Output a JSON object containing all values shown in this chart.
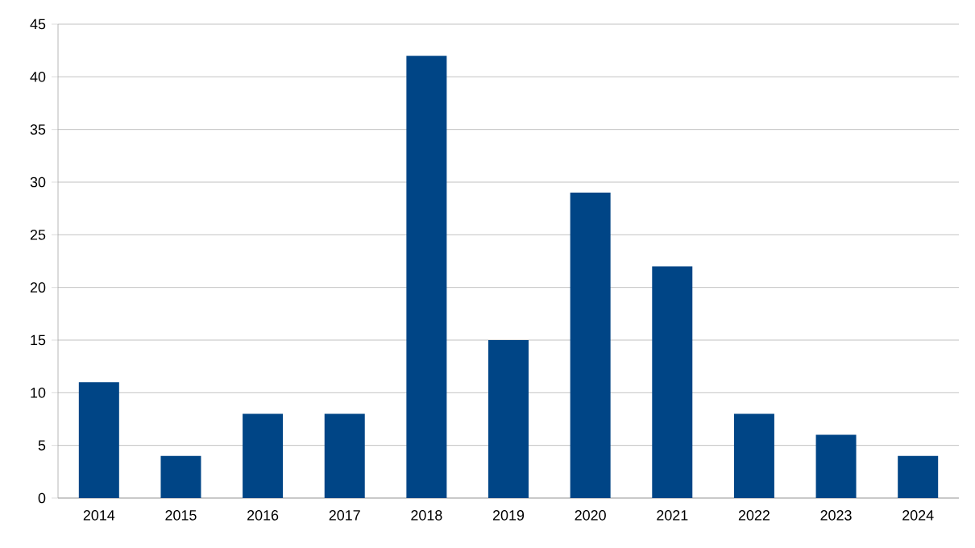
{
  "chart_data": {
    "type": "bar",
    "categories": [
      "2014",
      "2015",
      "2016",
      "2017",
      "2018",
      "2019",
      "2020",
      "2021",
      "2022",
      "2023",
      "2024"
    ],
    "values": [
      11,
      4,
      8,
      8,
      42,
      15,
      29,
      22,
      8,
      6,
      4
    ],
    "color": "#004586",
    "ylim": [
      0,
      45
    ],
    "yticks": [
      0,
      5,
      10,
      15,
      20,
      25,
      30,
      35,
      40,
      45
    ],
    "grid": "y"
  }
}
